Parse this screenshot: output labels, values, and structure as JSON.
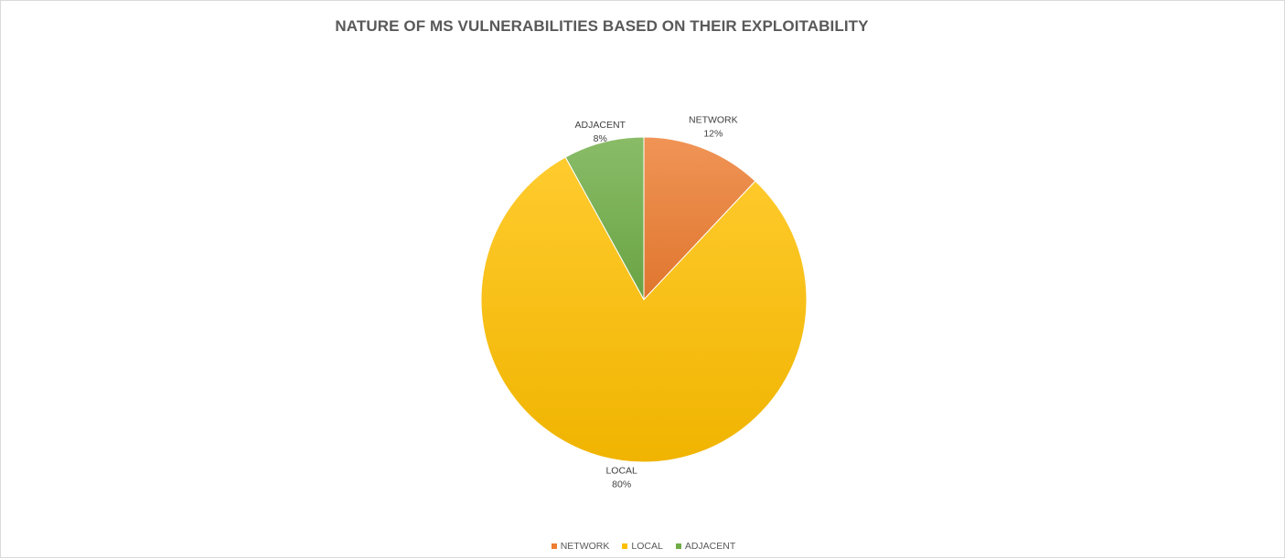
{
  "chart_data": {
    "type": "pie",
    "title": "NATURE OF MS VULNERABILITIES BASED ON THEIR EXPLOITABILITY",
    "categories": [
      "NETWORK",
      "LOCAL",
      "ADJACENT"
    ],
    "values": [
      12,
      80,
      8
    ],
    "value_labels": [
      "12%",
      "80%",
      "8%"
    ],
    "colors": [
      "#ed7d31",
      "#ffc000",
      "#70ad47"
    ],
    "legend_position": "bottom"
  }
}
